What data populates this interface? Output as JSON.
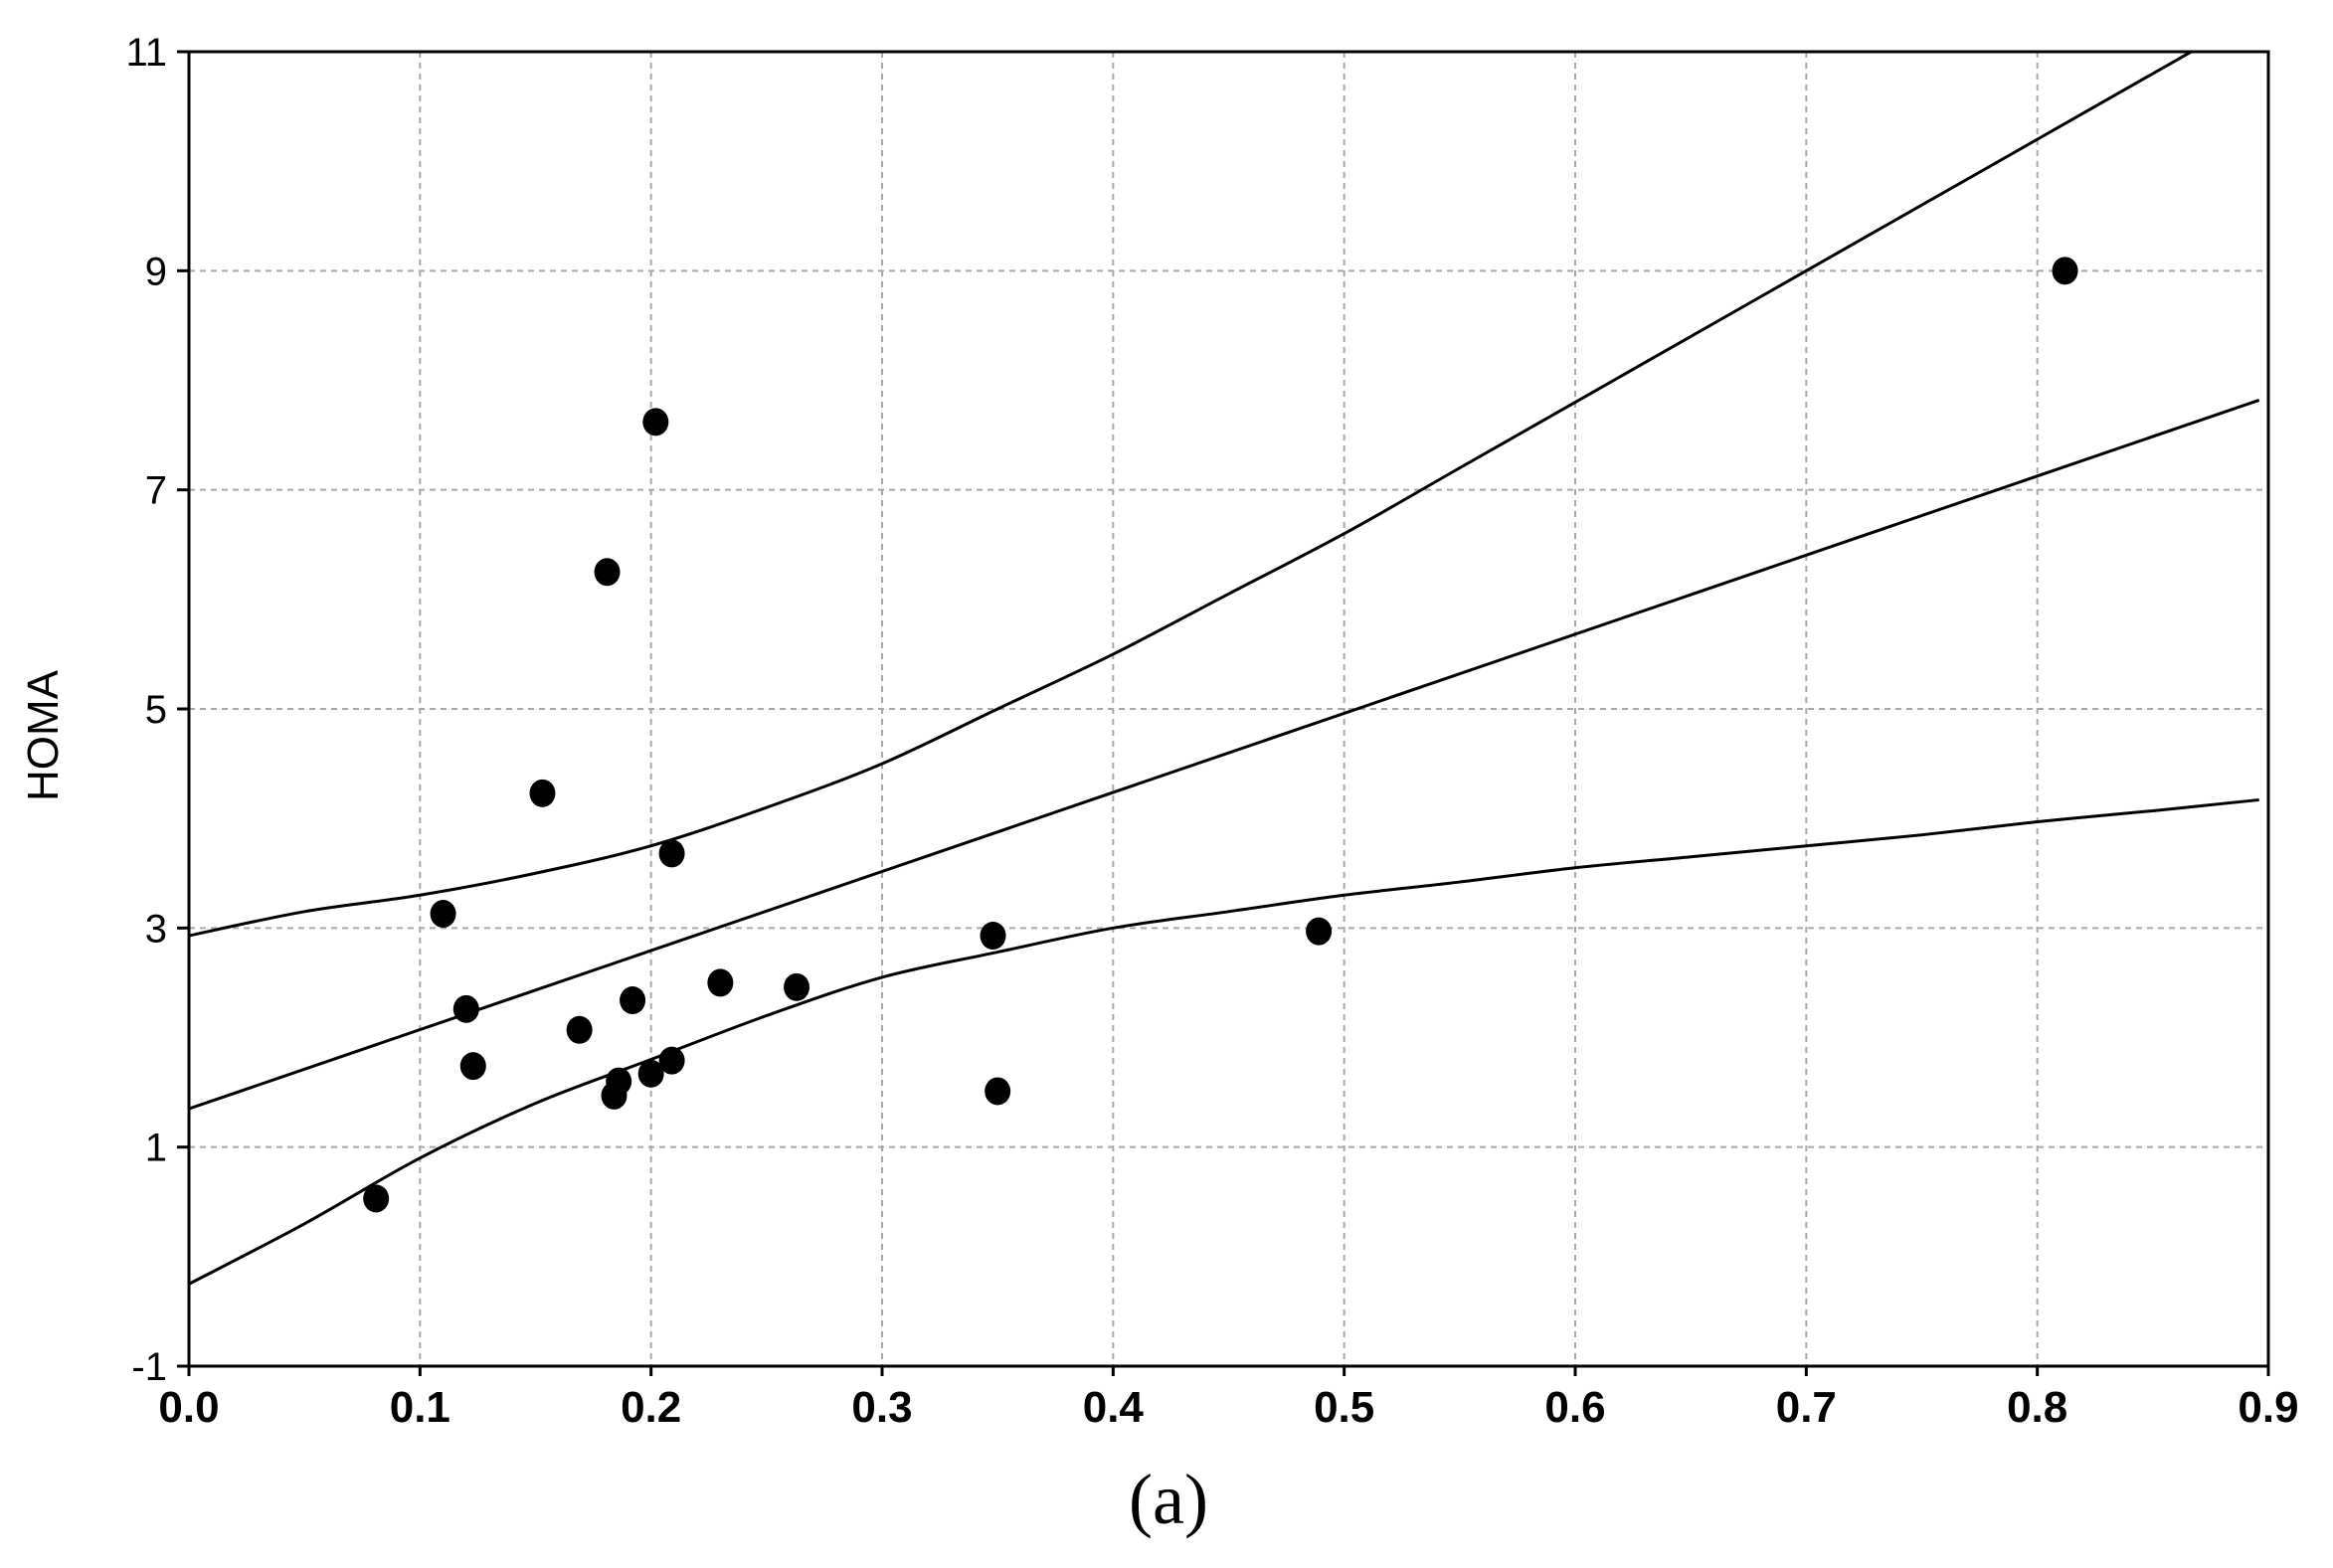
{
  "chart_data": {
    "type": "scatter",
    "title": "",
    "xlabel": "",
    "ylabel": "HOMA",
    "caption": "(a)",
    "xlim": [
      0.0,
      0.9
    ],
    "ylim": [
      -1,
      11
    ],
    "x_ticks": [
      "0.0",
      "0.1",
      "0.2",
      "0.3",
      "0.4",
      "0.5",
      "0.6",
      "0.7",
      "0.8",
      "0.9"
    ],
    "y_ticks": [
      "-1",
      "1",
      "3",
      "5",
      "7",
      "9",
      "11"
    ],
    "grid": true,
    "points": [
      {
        "x": 0.081,
        "y": 0.53
      },
      {
        "x": 0.11,
        "y": 3.13
      },
      {
        "x": 0.12,
        "y": 2.26
      },
      {
        "x": 0.123,
        "y": 1.74
      },
      {
        "x": 0.153,
        "y": 4.23
      },
      {
        "x": 0.169,
        "y": 2.07
      },
      {
        "x": 0.181,
        "y": 6.25
      },
      {
        "x": 0.184,
        "y": 1.47
      },
      {
        "x": 0.186,
        "y": 1.6
      },
      {
        "x": 0.192,
        "y": 2.34
      },
      {
        "x": 0.2,
        "y": 1.67
      },
      {
        "x": 0.202,
        "y": 7.62
      },
      {
        "x": 0.209,
        "y": 1.79
      },
      {
        "x": 0.209,
        "y": 3.68
      },
      {
        "x": 0.23,
        "y": 2.5
      },
      {
        "x": 0.263,
        "y": 2.46
      },
      {
        "x": 0.348,
        "y": 2.93
      },
      {
        "x": 0.35,
        "y": 1.51
      },
      {
        "x": 0.489,
        "y": 2.97
      },
      {
        "x": 0.812,
        "y": 9.0
      }
    ],
    "regression_line": {
      "intercept": 1.35,
      "slope": 7.22
    },
    "confidence_band": {
      "upper": [
        [
          0.0,
          2.93
        ],
        [
          0.05,
          3.15
        ],
        [
          0.1,
          3.3
        ],
        [
          0.15,
          3.5
        ],
        [
          0.2,
          3.75
        ],
        [
          0.25,
          4.1
        ],
        [
          0.3,
          4.5
        ],
        [
          0.35,
          5.0
        ],
        [
          0.4,
          5.5
        ],
        [
          0.45,
          6.05
        ],
        [
          0.5,
          6.6
        ],
        [
          0.55,
          7.2
        ],
        [
          0.6,
          7.8
        ],
        [
          0.65,
          8.4
        ],
        [
          0.7,
          9.0
        ],
        [
          0.75,
          9.6
        ],
        [
          0.8,
          10.2
        ],
        [
          0.85,
          10.8
        ],
        [
          0.9,
          11.4
        ]
      ],
      "lower": [
        [
          0.0,
          -0.25
        ],
        [
          0.05,
          0.3
        ],
        [
          0.1,
          0.9
        ],
        [
          0.15,
          1.4
        ],
        [
          0.2,
          1.8
        ],
        [
          0.25,
          2.2
        ],
        [
          0.3,
          2.55
        ],
        [
          0.35,
          2.78
        ],
        [
          0.4,
          3.0
        ],
        [
          0.45,
          3.15
        ],
        [
          0.5,
          3.3
        ],
        [
          0.55,
          3.42
        ],
        [
          0.6,
          3.55
        ],
        [
          0.65,
          3.65
        ],
        [
          0.7,
          3.75
        ],
        [
          0.75,
          3.85
        ],
        [
          0.8,
          3.97
        ],
        [
          0.85,
          4.07
        ],
        [
          0.9,
          4.17
        ]
      ]
    }
  }
}
